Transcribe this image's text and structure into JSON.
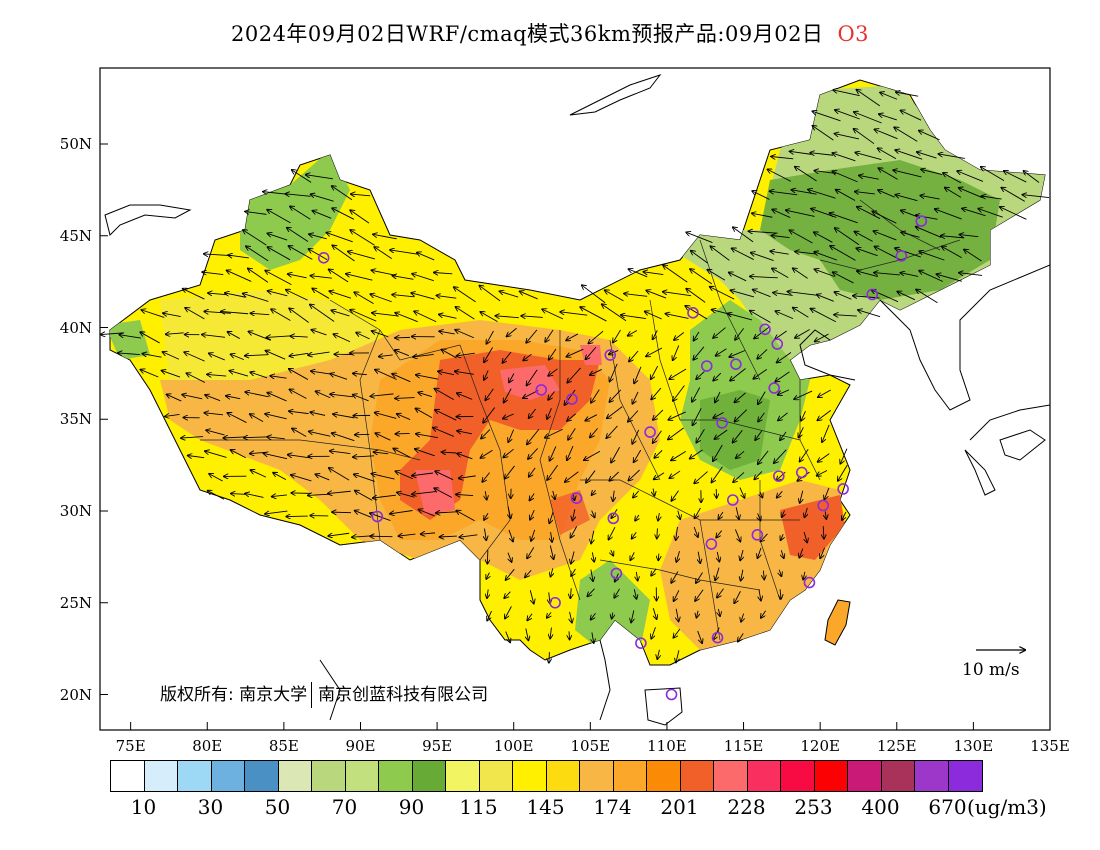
{
  "title": {
    "main": "2024年09月02日WRF/cmaq模式36km预报产品:09月02日",
    "pollutant": "O3"
  },
  "axes": {
    "lat_ticks": [
      "50N",
      "45N",
      "40N",
      "35N",
      "30N",
      "25N",
      "20N"
    ],
    "lat_values": [
      50,
      45,
      40,
      35,
      30,
      25,
      20
    ],
    "lon_ticks": [
      "75E",
      "80E",
      "85E",
      "90E",
      "95E",
      "100E",
      "105E",
      "110E",
      "115E",
      "120E",
      "125E",
      "130E",
      "135E"
    ],
    "lon_values": [
      75,
      80,
      85,
      90,
      95,
      100,
      105,
      110,
      115,
      120,
      125,
      130,
      135
    ],
    "lon_range": [
      73,
      135
    ],
    "lat_range": [
      18,
      54
    ]
  },
  "colorbar": {
    "colors": [
      "#ffffff",
      "#d6eefb",
      "#9dd8f4",
      "#6db1e0",
      "#4a90c4",
      "#dbe7b5",
      "#b9d77c",
      "#c3e07e",
      "#8dca4e",
      "#68aa36",
      "#f2f561",
      "#f2e64d",
      "#fff000",
      "#fcdc10",
      "#f8b744",
      "#fba72a",
      "#fb8a07",
      "#f2602a",
      "#fd6a6b",
      "#f9305f",
      "#f80a42",
      "#fc0103",
      "#ca1a77",
      "#a8325a",
      "#9d37c9",
      "#8c2bdc"
    ],
    "labels": [
      "10",
      "30",
      "50",
      "70",
      "90",
      "115",
      "145",
      "174",
      "201",
      "228",
      "253",
      "400",
      "670"
    ],
    "unit": "(ug/m3)"
  },
  "copyright": {
    "prefix": "版权所有:",
    "org1": "南京大学",
    "org2": "南京创蓝科技有限公司"
  },
  "wind_scale": {
    "label": "10 m/s"
  },
  "map_colors": {
    "green_north": "#b9d77c",
    "green_dark": "#68aa36",
    "green_mid": "#8dca4e",
    "yellow": "#fff000",
    "yellow_light": "#f2e64d",
    "orange_light": "#f8b744",
    "orange": "#fba72a",
    "red_orange": "#f2602a",
    "red": "#f9305f",
    "station_marker": "#8c2bdc"
  },
  "stations": [
    [
      87.6,
      43.8
    ],
    [
      91.1,
      29.7
    ],
    [
      101.8,
      36.6
    ],
    [
      103.8,
      36.1
    ],
    [
      106.3,
      38.5
    ],
    [
      108.9,
      34.3
    ],
    [
      104.1,
      30.7
    ],
    [
      106.5,
      29.6
    ],
    [
      106.7,
      26.6
    ],
    [
      102.7,
      25.0
    ],
    [
      108.3,
      22.8
    ],
    [
      110.3,
      20.0
    ],
    [
      113.3,
      23.1
    ],
    [
      112.9,
      28.2
    ],
    [
      115.9,
      28.7
    ],
    [
      114.3,
      30.6
    ],
    [
      113.6,
      34.8
    ],
    [
      112.6,
      37.9
    ],
    [
      114.5,
      38.0
    ],
    [
      111.7,
      40.8
    ],
    [
      116.4,
      39.9
    ],
    [
      117.2,
      39.1
    ],
    [
      117.0,
      36.7
    ],
    [
      117.3,
      31.9
    ],
    [
      118.8,
      32.1
    ],
    [
      121.5,
      31.2
    ],
    [
      120.2,
      30.3
    ],
    [
      119.3,
      26.1
    ],
    [
      123.4,
      41.8
    ],
    [
      125.3,
      43.9
    ],
    [
      126.6,
      45.8
    ]
  ]
}
